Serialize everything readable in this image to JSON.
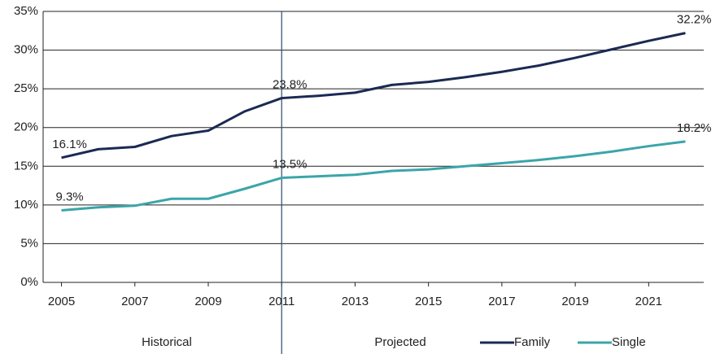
{
  "chart_data": {
    "type": "line",
    "x": [
      2005,
      2006,
      2007,
      2008,
      2009,
      2010,
      2011,
      2012,
      2013,
      2014,
      2015,
      2016,
      2017,
      2018,
      2019,
      2020,
      2021,
      2022
    ],
    "series": [
      {
        "name": "Family",
        "color": "#1b2a52",
        "values": [
          16.1,
          17.2,
          17.5,
          18.9,
          19.6,
          22.1,
          23.8,
          24.1,
          24.5,
          25.5,
          25.9,
          26.5,
          27.2,
          28.0,
          29.0,
          30.1,
          31.2,
          32.2
        ],
        "value_labels": [
          "16.1%",
          null,
          null,
          null,
          null,
          null,
          "23.8%",
          null,
          null,
          null,
          null,
          null,
          null,
          null,
          null,
          null,
          null,
          "32.2%"
        ]
      },
      {
        "name": "Single",
        "color": "#3ba5aa",
        "values": [
          9.3,
          9.7,
          9.9,
          10.8,
          10.8,
          12.1,
          13.5,
          13.7,
          13.9,
          14.4,
          14.6,
          15.0,
          15.4,
          15.8,
          16.3,
          16.9,
          17.6,
          18.2
        ],
        "value_labels": [
          "9.3%",
          null,
          null,
          null,
          null,
          null,
          "13.5%",
          null,
          null,
          null,
          null,
          null,
          null,
          null,
          null,
          null,
          null,
          "18.2%"
        ]
      }
    ],
    "xlim": [
      2004.5,
      2022.5
    ],
    "xticks": [
      2005,
      2007,
      2009,
      2011,
      2013,
      2015,
      2017,
      2019,
      2021
    ],
    "ylim": [
      0,
      35
    ],
    "yticks": [
      {
        "value": 0,
        "label": "0%"
      },
      {
        "value": 5,
        "label": "5%"
      },
      {
        "value": 10,
        "label": "10%"
      },
      {
        "value": 15,
        "label": "15%"
      },
      {
        "value": 20,
        "label": "20%"
      },
      {
        "value": 25,
        "label": "25%"
      },
      {
        "value": 30,
        "label": "30%"
      },
      {
        "value": 35,
        "label": "35%"
      }
    ],
    "grid": true,
    "divider_x": 2011,
    "annotations": [
      {
        "text": "Historical"
      },
      {
        "text": "Projected"
      }
    ],
    "legend": "bottom-right"
  }
}
